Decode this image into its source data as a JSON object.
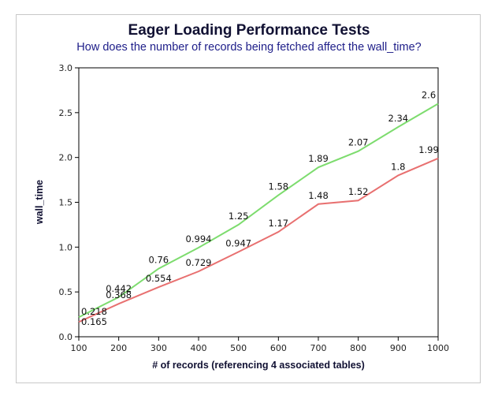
{
  "chart_data": {
    "type": "line",
    "title": "Eager Loading Performance Tests",
    "subtitle": "How does the number of records being fetched affect the wall_time?",
    "xlabel": "# of records (referencing 4 associated tables)",
    "ylabel": "wall_time",
    "xlim": [
      100,
      1000
    ],
    "ylim": [
      0.0,
      3.0
    ],
    "x_ticks": [
      "100",
      "200",
      "300",
      "400",
      "500",
      "600",
      "700",
      "800",
      "900",
      "1000"
    ],
    "y_ticks": [
      "0.0",
      "0.5",
      "1.0",
      "1.5",
      "2.0",
      "2.5",
      "3.0"
    ],
    "grid": false,
    "legend": "none",
    "series": [
      {
        "color": "#7ddc6e",
        "x": [
          100,
          200,
          300,
          400,
          500,
          600,
          700,
          800,
          900,
          1000
        ],
        "values": [
          0.218,
          0.442,
          0.76,
          0.994,
          1.25,
          1.58,
          1.89,
          2.07,
          2.34,
          2.6
        ],
        "labels": [
          "0.218",
          "0.442",
          "0.76",
          "0.994",
          "1.25",
          "1.58",
          "1.89",
          "2.07",
          "2.34",
          "2.6"
        ]
      },
      {
        "color": "#e87070",
        "x": [
          100,
          200,
          300,
          400,
          500,
          600,
          700,
          800,
          900,
          1000
        ],
        "values": [
          0.165,
          0.368,
          0.554,
          0.729,
          0.947,
          1.17,
          1.48,
          1.52,
          1.8,
          1.99
        ],
        "labels": [
          "0.165",
          "0.368",
          "0.554",
          "0.729",
          "0.947",
          "1.17",
          "1.48",
          "1.52",
          "1.8",
          "1.99"
        ]
      }
    ]
  }
}
